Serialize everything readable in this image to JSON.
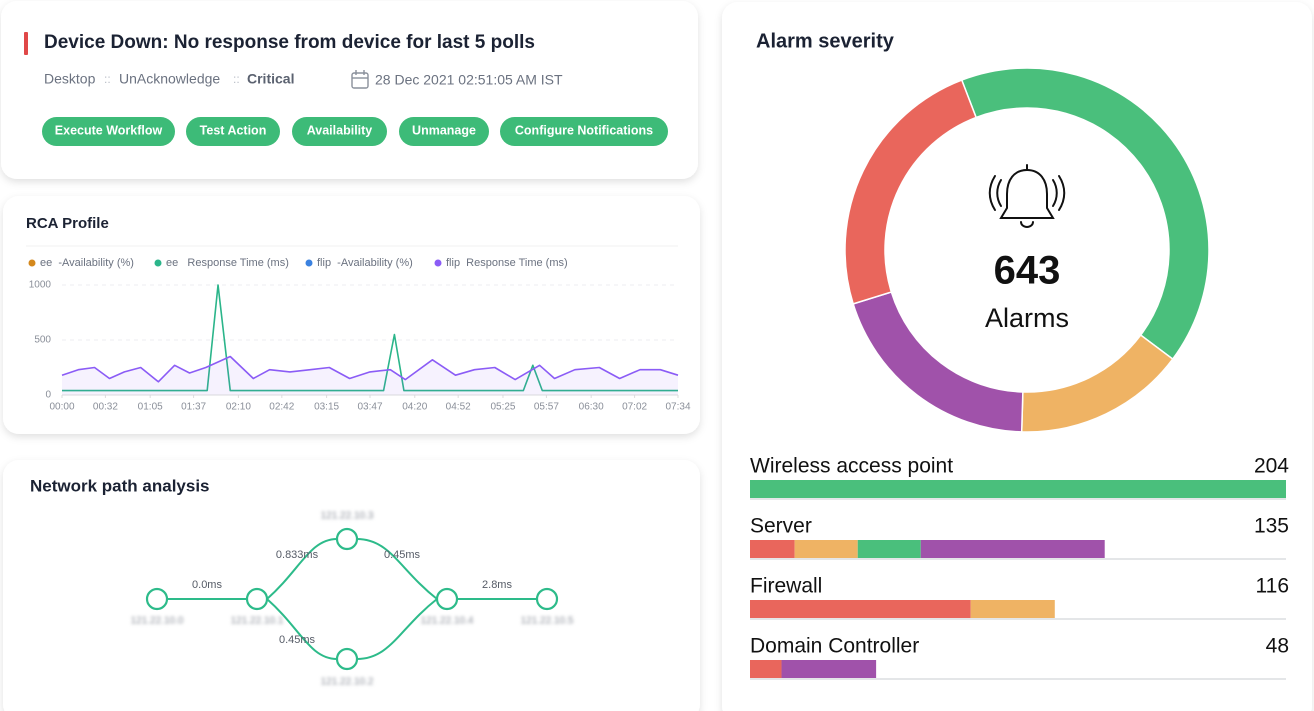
{
  "alert": {
    "title": "Device Down: No response from device for last 5 polls",
    "source": "Desktop",
    "separator": "::",
    "status": "UnAcknowledge",
    "severity": "Critical",
    "timestamp": "28 Dec 2021 02:51:05 AM IST",
    "actions": [
      "Execute Workflow",
      "Test Action",
      "Availability",
      "Unmanage",
      "Configure Notifications"
    ]
  },
  "network_path": {
    "title": "Network path analysis",
    "nodes": [
      {
        "label": "121.22.10.0"
      },
      {
        "label": "121.22.10.1"
      },
      {
        "label": "121.22.10.3"
      },
      {
        "label": "121.22.10.2"
      },
      {
        "label": "121.22.10.4"
      },
      {
        "label": "121.22.10.5"
      }
    ],
    "edges": [
      {
        "label": "0.0ms"
      },
      {
        "label": "0.833ms"
      },
      {
        "label": "0.45ms"
      },
      {
        "label": "0.45ms"
      },
      {
        "label": "2.8ms"
      }
    ]
  },
  "chart_data": [
    {
      "type": "line",
      "title": "RCA Profile",
      "xlim": [
        0,
        454
      ],
      "xticks": [
        {
          "value": 0,
          "label": "00:00"
        },
        {
          "value": 32,
          "label": "00:32"
        },
        {
          "value": 65,
          "label": "01:05"
        },
        {
          "value": 97,
          "label": "01:37"
        },
        {
          "value": 130,
          "label": "02:10"
        },
        {
          "value": 162,
          "label": "02:42"
        },
        {
          "value": 195,
          "label": "03:15"
        },
        {
          "value": 227,
          "label": "03:47"
        },
        {
          "value": 260,
          "label": "04:20"
        },
        {
          "value": 292,
          "label": "04:52"
        },
        {
          "value": 325,
          "label": "05:25"
        },
        {
          "value": 357,
          "label": "05:57"
        },
        {
          "value": 390,
          "label": "06:30"
        },
        {
          "value": 422,
          "label": "07:02"
        },
        {
          "value": 454,
          "label": "07:34"
        }
      ],
      "ylim": [
        0,
        1000
      ],
      "yticks": [
        0,
        500,
        1000
      ],
      "grid": true,
      "series": [
        {
          "name": "ee  -Availability (%)",
          "color": "#d4881c"
        },
        {
          "name": "ee   Response Time (ms)",
          "color": "#2bb58a",
          "x": [
            0,
            107,
            115,
            124,
            237,
            245,
            252,
            340,
            347,
            354,
            454
          ],
          "values": [
            40,
            40,
            1000,
            40,
            40,
            550,
            40,
            40,
            270,
            40,
            40
          ]
        },
        {
          "name": "flip  -Availability (%)",
          "color": "#3b82e0"
        },
        {
          "name": "flip  Response Time (ms)",
          "color": "#8b5cf6",
          "area": true,
          "x": [
            0,
            12,
            24,
            35,
            46,
            58,
            71,
            83,
            94,
            106,
            124,
            141,
            153,
            168,
            183,
            197,
            212,
            227,
            242,
            253,
            273,
            290,
            304,
            319,
            334,
            352,
            363,
            378,
            396,
            411,
            426,
            441,
            454
          ],
          "values": [
            180,
            230,
            250,
            150,
            210,
            250,
            120,
            270,
            200,
            250,
            350,
            150,
            230,
            210,
            230,
            250,
            150,
            210,
            230,
            140,
            320,
            180,
            230,
            250,
            140,
            270,
            150,
            230,
            250,
            150,
            230,
            230,
            180
          ]
        }
      ]
    },
    {
      "type": "donut",
      "title": "Alarm severity",
      "values": [
        264,
        98,
        127,
        154
      ],
      "colors": [
        "#4abf7c",
        "#efb364",
        "#a052aa",
        "#e9665c"
      ],
      "total": 643,
      "total_label": "Alarms"
    },
    {
      "type": "stacked_hbar",
      "categories": [
        "Wireless access point",
        "Server",
        "Firewall",
        "Domain Controller"
      ],
      "totals": [
        204,
        135,
        116,
        48
      ],
      "xlim": [
        0,
        204
      ],
      "series": [
        {
          "color": "#e9665c",
          "values": [
            0,
            17,
            84,
            12
          ]
        },
        {
          "color": "#efb364",
          "values": [
            0,
            24,
            32,
            0
          ]
        },
        {
          "color": "#4abf7c",
          "values": [
            204,
            24,
            0,
            0
          ]
        },
        {
          "color": "#a052aa",
          "values": [
            0,
            70,
            0,
            36
          ]
        }
      ]
    }
  ]
}
